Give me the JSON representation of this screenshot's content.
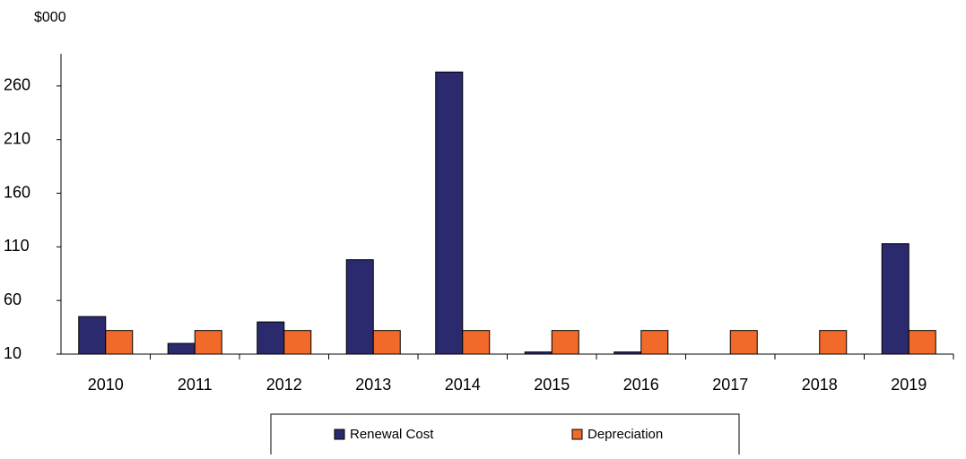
{
  "chart_data": {
    "type": "bar",
    "y_axis_label": "$000",
    "categories": [
      "2010",
      "2011",
      "2012",
      "2013",
      "2014",
      "2015",
      "2016",
      "2017",
      "2018",
      "2019"
    ],
    "series": [
      {
        "name": "Renewal Cost",
        "color": "#2b2a6e",
        "values": [
          45,
          20,
          40,
          98,
          273,
          12,
          12,
          0,
          0,
          113
        ]
      },
      {
        "name": "Depreciation",
        "color": "#f26a2a",
        "values": [
          32,
          32,
          32,
          32,
          32,
          32,
          32,
          32,
          32,
          32
        ]
      }
    ],
    "ylim": [
      10,
      290
    ],
    "yticks": [
      10,
      60,
      110,
      160,
      210,
      260
    ],
    "grid": false,
    "legend": "bottom"
  }
}
